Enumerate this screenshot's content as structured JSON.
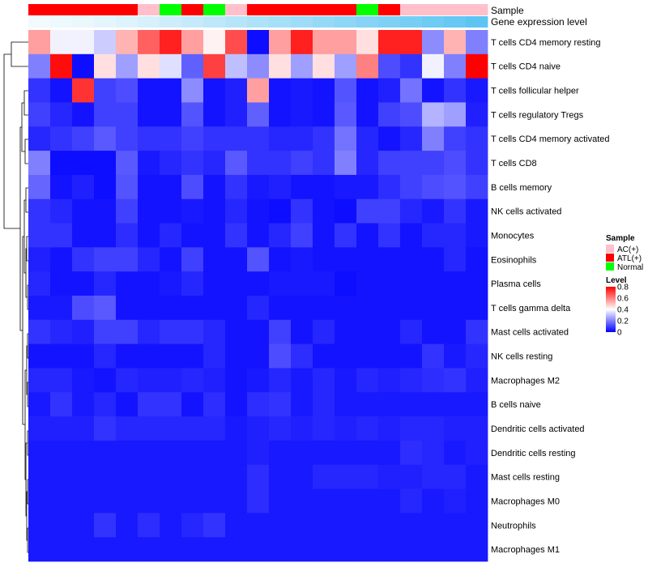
{
  "chart_data": {
    "type": "heatmap",
    "title": "",
    "annotations": [
      {
        "name": "Sample",
        "label": "Sample"
      },
      {
        "name": "Gene expression level",
        "label": "Gene expression level"
      }
    ],
    "sample_groups": [
      "ATL(+)",
      "ATL(+)",
      "ATL(+)",
      "ATL(+)",
      "ATL(+)",
      "AC(+)",
      "Normal",
      "ATL(+)",
      "Normal",
      "AC(+)",
      "ATL(+)",
      "ATL(+)",
      "ATL(+)",
      "ATL(+)",
      "ATL(+)",
      "Normal",
      "ATL(+)",
      "AC(+)",
      "AC(+)",
      "AC(+)",
      "AC(+)"
    ],
    "gene_expression_level": [
      0.02,
      0.04,
      0.06,
      0.09,
      0.12,
      0.16,
      0.2,
      0.24,
      0.28,
      0.32,
      0.36,
      0.4,
      0.44,
      0.48,
      0.52,
      0.56,
      0.6,
      0.64,
      0.68,
      0.72,
      0.76
    ],
    "rows": [
      "T cells CD4 memory resting",
      "T cells CD4 naive",
      "T cells follicular helper",
      "T cells regulatory  Tregs",
      "T cells CD4 memory activated",
      "T cells CD8",
      "B cells memory",
      "NK cells activated",
      "Monocytes",
      "Eosinophils",
      "Plasma cells",
      "T cells gamma delta",
      "Mast cells activated",
      "NK cells resting",
      "Macrophages M2",
      "B cells naive",
      "Dendritic cells activated",
      "Dendritic cells resting",
      "Mast cells resting",
      "Macrophages M0",
      "Neutrophils",
      "Macrophages M1"
    ],
    "values": [
      [
        0.55,
        0.38,
        0.38,
        0.32,
        0.52,
        0.65,
        0.75,
        0.55,
        0.42,
        0.68,
        0.02,
        0.55,
        0.75,
        0.55,
        0.55,
        0.45,
        0.75,
        0.75,
        0.22,
        0.52,
        0.2
      ],
      [
        0.2,
        0.78,
        0.02,
        0.45,
        0.25,
        0.45,
        0.35,
        0.15,
        0.7,
        0.3,
        0.22,
        0.45,
        0.25,
        0.45,
        0.25,
        0.6,
        0.12,
        0.08,
        0.38,
        0.2,
        0.8
      ],
      [
        0.08,
        0.03,
        0.72,
        0.1,
        0.12,
        0.03,
        0.03,
        0.22,
        0.03,
        0.05,
        0.55,
        0.03,
        0.04,
        0.03,
        0.13,
        0.03,
        0.05,
        0.18,
        0.03,
        0.08,
        0.04
      ],
      [
        0.1,
        0.06,
        0.03,
        0.1,
        0.1,
        0.03,
        0.03,
        0.13,
        0.03,
        0.05,
        0.15,
        0.03,
        0.04,
        0.03,
        0.14,
        0.03,
        0.1,
        0.12,
        0.28,
        0.25,
        0.05
      ],
      [
        0.06,
        0.08,
        0.1,
        0.14,
        0.1,
        0.08,
        0.08,
        0.1,
        0.08,
        0.08,
        0.08,
        0.06,
        0.06,
        0.08,
        0.18,
        0.06,
        0.03,
        0.06,
        0.2,
        0.1,
        0.08
      ],
      [
        0.2,
        0.02,
        0.02,
        0.02,
        0.14,
        0.04,
        0.06,
        0.08,
        0.06,
        0.14,
        0.08,
        0.08,
        0.1,
        0.08,
        0.2,
        0.06,
        0.1,
        0.1,
        0.1,
        0.12,
        0.08
      ],
      [
        0.16,
        0.03,
        0.05,
        0.02,
        0.13,
        0.03,
        0.03,
        0.12,
        0.03,
        0.08,
        0.04,
        0.05,
        0.03,
        0.03,
        0.04,
        0.04,
        0.07,
        0.1,
        0.12,
        0.13,
        0.1
      ],
      [
        0.08,
        0.06,
        0.03,
        0.03,
        0.1,
        0.03,
        0.03,
        0.04,
        0.03,
        0.06,
        0.03,
        0.02,
        0.08,
        0.03,
        0.02,
        0.1,
        0.1,
        0.06,
        0.04,
        0.08,
        0.04
      ],
      [
        0.08,
        0.08,
        0.03,
        0.03,
        0.07,
        0.03,
        0.06,
        0.03,
        0.03,
        0.08,
        0.03,
        0.06,
        0.1,
        0.03,
        0.08,
        0.03,
        0.08,
        0.03,
        0.06,
        0.06,
        0.04
      ],
      [
        0.05,
        0.03,
        0.08,
        0.1,
        0.1,
        0.06,
        0.03,
        0.1,
        0.03,
        0.03,
        0.13,
        0.03,
        0.04,
        0.03,
        0.03,
        0.03,
        0.03,
        0.03,
        0.03,
        0.06,
        0.03
      ],
      [
        0.06,
        0.03,
        0.03,
        0.06,
        0.03,
        0.03,
        0.04,
        0.06,
        0.03,
        0.03,
        0.03,
        0.04,
        0.04,
        0.04,
        0.02,
        0.03,
        0.03,
        0.03,
        0.03,
        0.03,
        0.03
      ],
      [
        0.04,
        0.04,
        0.12,
        0.14,
        0.03,
        0.03,
        0.03,
        0.03,
        0.03,
        0.03,
        0.06,
        0.03,
        0.03,
        0.03,
        0.03,
        0.03,
        0.03,
        0.03,
        0.03,
        0.03,
        0.03
      ],
      [
        0.08,
        0.06,
        0.05,
        0.1,
        0.1,
        0.06,
        0.08,
        0.08,
        0.06,
        0.03,
        0.03,
        0.1,
        0.03,
        0.06,
        0.03,
        0.03,
        0.03,
        0.06,
        0.03,
        0.03,
        0.08
      ],
      [
        0.03,
        0.03,
        0.03,
        0.06,
        0.03,
        0.03,
        0.03,
        0.03,
        0.06,
        0.03,
        0.03,
        0.12,
        0.07,
        0.03,
        0.03,
        0.03,
        0.03,
        0.03,
        0.08,
        0.04,
        0.06
      ],
      [
        0.06,
        0.06,
        0.04,
        0.03,
        0.06,
        0.05,
        0.05,
        0.06,
        0.05,
        0.03,
        0.04,
        0.06,
        0.04,
        0.06,
        0.04,
        0.06,
        0.05,
        0.06,
        0.07,
        0.08,
        0.05
      ],
      [
        0.04,
        0.08,
        0.04,
        0.06,
        0.03,
        0.08,
        0.08,
        0.03,
        0.07,
        0.03,
        0.07,
        0.08,
        0.04,
        0.06,
        0.04,
        0.04,
        0.04,
        0.04,
        0.04,
        0.04,
        0.04
      ],
      [
        0.05,
        0.05,
        0.05,
        0.08,
        0.06,
        0.06,
        0.06,
        0.06,
        0.06,
        0.04,
        0.05,
        0.06,
        0.05,
        0.06,
        0.05,
        0.06,
        0.05,
        0.06,
        0.06,
        0.05,
        0.05
      ],
      [
        0.04,
        0.04,
        0.04,
        0.04,
        0.04,
        0.04,
        0.04,
        0.04,
        0.04,
        0.04,
        0.05,
        0.04,
        0.04,
        0.04,
        0.04,
        0.04,
        0.04,
        0.07,
        0.06,
        0.04,
        0.05
      ],
      [
        0.04,
        0.04,
        0.04,
        0.04,
        0.04,
        0.04,
        0.04,
        0.04,
        0.04,
        0.04,
        0.07,
        0.04,
        0.04,
        0.06,
        0.06,
        0.06,
        0.05,
        0.05,
        0.06,
        0.06,
        0.04
      ],
      [
        0.04,
        0.04,
        0.04,
        0.04,
        0.04,
        0.04,
        0.04,
        0.04,
        0.04,
        0.04,
        0.07,
        0.04,
        0.04,
        0.04,
        0.04,
        0.04,
        0.04,
        0.06,
        0.04,
        0.05,
        0.04
      ],
      [
        0.04,
        0.04,
        0.04,
        0.08,
        0.04,
        0.07,
        0.04,
        0.06,
        0.08,
        0.04,
        0.04,
        0.04,
        0.04,
        0.04,
        0.04,
        0.04,
        0.04,
        0.04,
        0.04,
        0.04,
        0.04
      ],
      [
        0.04,
        0.04,
        0.04,
        0.04,
        0.04,
        0.04,
        0.04,
        0.04,
        0.04,
        0.04,
        0.04,
        0.04,
        0.04,
        0.04,
        0.04,
        0.04,
        0.04,
        0.04,
        0.04,
        0.04,
        0.04
      ]
    ],
    "sample_legend": {
      "title": "Sample",
      "items": [
        {
          "label": "AC(+)",
          "color": "#ffc0cb"
        },
        {
          "label": "ATL(+)",
          "color": "#ff0000"
        },
        {
          "label": "Normal",
          "color": "#00ff00"
        }
      ]
    },
    "level_legend": {
      "title": "Level",
      "range": [
        0,
        0.8
      ],
      "ticks": [
        "0.8",
        "0.6",
        "0.4",
        "0.2",
        "0"
      ],
      "tick_values": [
        0.8,
        0.6,
        0.4,
        0.2,
        0
      ],
      "colors": {
        "low": "#0000ff",
        "mid": "#ffffff",
        "high": "#ff0000"
      }
    }
  }
}
